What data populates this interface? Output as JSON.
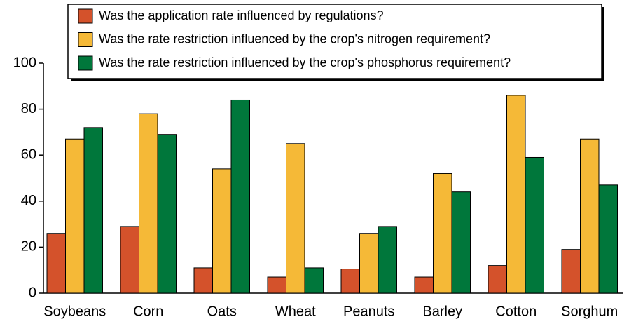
{
  "chart_data": {
    "type": "bar",
    "categories": [
      "Soybeans",
      "Corn",
      "Oats",
      "Wheat",
      "Peanuts",
      "Barley",
      "Cotton",
      "Sorghum"
    ],
    "series": [
      {
        "name": "Was the application rate influenced by regulations?",
        "color": "#d4522b",
        "values": [
          26,
          29,
          11,
          7,
          10.5,
          7,
          12,
          19
        ]
      },
      {
        "name": "Was the rate restriction influenced by the crop's nitrogen requirement?",
        "color": "#f5b937",
        "values": [
          67,
          78,
          54,
          65,
          26,
          52,
          86,
          67
        ]
      },
      {
        "name": "Was the rate restriction influenced by the crop's phosphorus requirement?",
        "color": "#00773b",
        "values": [
          72,
          69,
          84,
          11,
          29,
          44,
          59,
          47
        ]
      }
    ],
    "ylim": [
      0,
      100
    ],
    "yticks": [
      0,
      20,
      40,
      60,
      80,
      100
    ],
    "legend": "top"
  }
}
